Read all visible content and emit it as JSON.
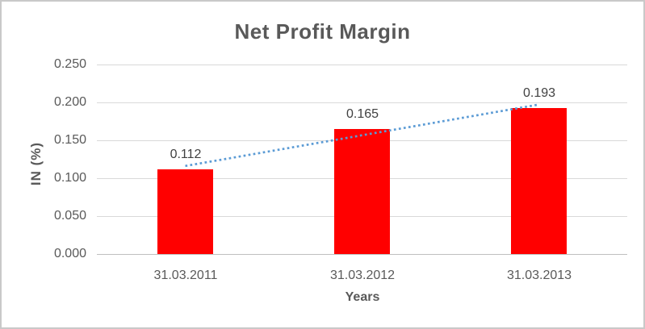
{
  "chart_data": {
    "type": "bar",
    "title": "Net Profit Margin",
    "xlabel": "Years",
    "ylabel": "IN (%)",
    "categories": [
      "31.03.2011",
      "31.03.2012",
      "31.03.2013"
    ],
    "values": [
      0.112,
      0.165,
      0.193
    ],
    "data_labels": [
      "0.112",
      "0.165",
      "0.193"
    ],
    "ylim": [
      0,
      0.25
    ],
    "ytick_step": 0.05,
    "ytick_labels": [
      "0.000",
      "0.050",
      "0.100",
      "0.150",
      "0.200",
      "0.250"
    ],
    "grid": true,
    "legend": "none",
    "trendline": {
      "type": "linear",
      "style": "dotted",
      "color": "#5b9bd5"
    },
    "colors": {
      "bar": "#ff0000",
      "gridline": "#d9d9d9",
      "axis_line": "#bfbfbf",
      "title_text": "#595959",
      "tick_text": "#595959",
      "data_label_text": "#404040",
      "frame_border": "#c9c9c9",
      "background": "#ffffff"
    }
  }
}
